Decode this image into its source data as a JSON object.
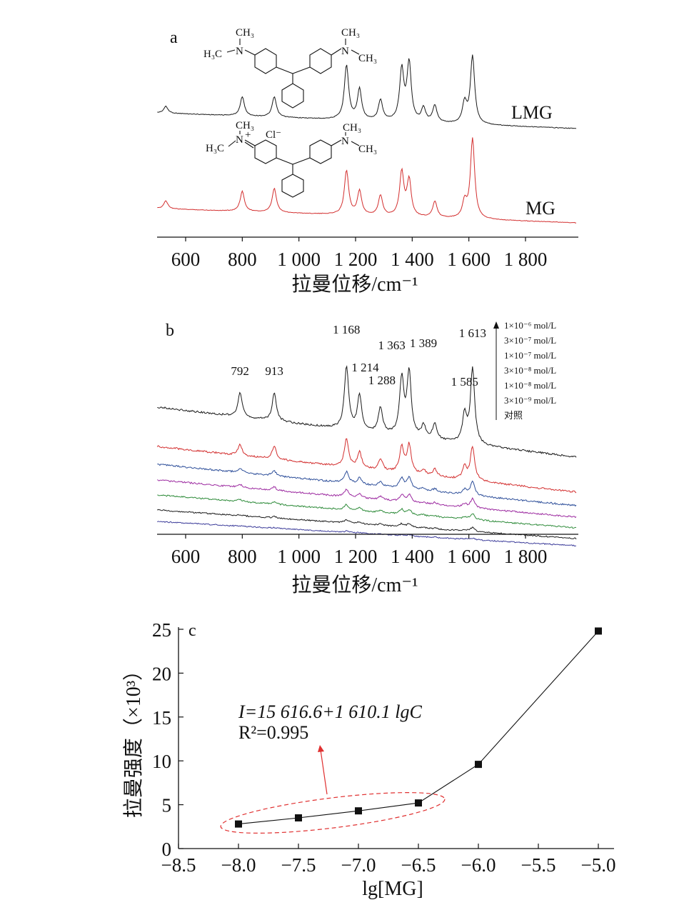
{
  "panel_a": {
    "label": "a",
    "xlabel": "拉曼位移/cm⁻¹",
    "ticks": [
      "600",
      "800",
      "1 000",
      "1 200",
      "1 400",
      "1 600",
      "1 800"
    ],
    "lmg_structure": {
      "top_left": "CH₃",
      "left": "H₃C",
      "n": "N",
      "top_right": "CH₃",
      "right": "CH₃",
      "n2": "N"
    },
    "mg_structure": {
      "top_left": "CH₃",
      "left": "H₃C",
      "n": "N",
      "charge": "+",
      "counterion": "Cl⁻",
      "top_right": "CH₃",
      "right": "CH₃",
      "n2": "N"
    }
  },
  "panel_b": {
    "label": "b",
    "xlabel": "拉曼位移/cm⁻¹",
    "ticks": [
      "600",
      "800",
      "1 000",
      "1 200",
      "1 400",
      "1 600",
      "1 800"
    ],
    "legend": [
      "1×10⁻⁶ mol/L",
      "3×10⁻⁷ mol/L",
      "1×10⁻⁷ mol/L",
      "3×10⁻⁸ mol/L",
      "1×10⁻⁸ mol/L",
      "3×10⁻⁹ mol/L",
      "对照"
    ],
    "peak_labels": [
      "792",
      "913",
      "1 168",
      "1 214",
      "1 288",
      "1 363",
      "1 389",
      "1 585",
      "1 613"
    ]
  },
  "panel_c": {
    "label": "c",
    "ylabel": "拉曼强度（×10³）",
    "xlabel": "lg[MG]",
    "eq1": "I=15 616.6+1 610.1 lgC",
    "eq2": "R²=0.995",
    "xticks": [
      "−8.5",
      "−8.0",
      "−7.5",
      "−7.0",
      "−6.5",
      "−6.0",
      "−5.5",
      "−5.0"
    ],
    "yticks": [
      "0",
      "5",
      "10",
      "15",
      "20",
      "25"
    ]
  },
  "colors": {
    "lmg": "#1a1a1a",
    "mg": "#d32f2f",
    "conc": [
      "#1a1a1a",
      "#d32f2f",
      "#2e4f9a",
      "#9c2aa0",
      "#2e8b3a",
      "#1a1a1a",
      "#3c3c9a"
    ],
    "ellipse": "#e03030"
  },
  "chart_data": [
    {
      "type": "line",
      "panel": "a",
      "xlim": [
        500,
        1980
      ],
      "series": [
        {
          "name": "LMG",
          "peaks": [
            [
              530,
              0.1
            ],
            [
              800,
              0.28
            ],
            [
              913,
              0.3
            ],
            [
              1168,
              0.8
            ],
            [
              1214,
              0.45
            ],
            [
              1288,
              0.3
            ],
            [
              1363,
              0.75
            ],
            [
              1389,
              0.85
            ],
            [
              1440,
              0.2
            ],
            [
              1480,
              0.25
            ],
            [
              1585,
              0.3
            ],
            [
              1613,
              1.0
            ]
          ]
        },
        {
          "name": "MG",
          "peaks": [
            [
              530,
              0.1
            ],
            [
              800,
              0.25
            ],
            [
              913,
              0.3
            ],
            [
              1168,
              0.55
            ],
            [
              1214,
              0.3
            ],
            [
              1288,
              0.25
            ],
            [
              1363,
              0.55
            ],
            [
              1389,
              0.45
            ],
            [
              1480,
              0.2
            ],
            [
              1585,
              0.2
            ],
            [
              1613,
              1.0
            ]
          ]
        }
      ]
    },
    {
      "type": "line",
      "panel": "b",
      "xlim": [
        500,
        1980
      ],
      "peaks": [
        792,
        913,
        1168,
        1214,
        1288,
        1363,
        1389,
        1585,
        1613
      ],
      "series": [
        {
          "name": "1×10⁻⁶ mol/L",
          "scale": 1.0
        },
        {
          "name": "3×10⁻⁷ mol/L",
          "scale": 0.45
        },
        {
          "name": "1×10⁻⁷ mol/L",
          "scale": 0.18
        },
        {
          "name": "3×10⁻⁸ mol/L",
          "scale": 0.12
        },
        {
          "name": "1×10⁻⁸ mol/L",
          "scale": 0.08
        },
        {
          "name": "3×10⁻⁹ mol/L",
          "scale": 0.05
        },
        {
          "name": "对照",
          "scale": 0.02
        }
      ]
    },
    {
      "type": "scatter",
      "panel": "c",
      "xlabel": "lg[MG]",
      "ylabel": "拉曼强度（×10³）",
      "xlim": [
        -8.5,
        -5.0
      ],
      "ylim": [
        0,
        25
      ],
      "x": [
        -8.0,
        -7.5,
        -7.0,
        -6.5,
        -6.0,
        -5.0
      ],
      "y": [
        2.8,
        3.5,
        4.3,
        5.2,
        9.6,
        24.8
      ]
    }
  ]
}
